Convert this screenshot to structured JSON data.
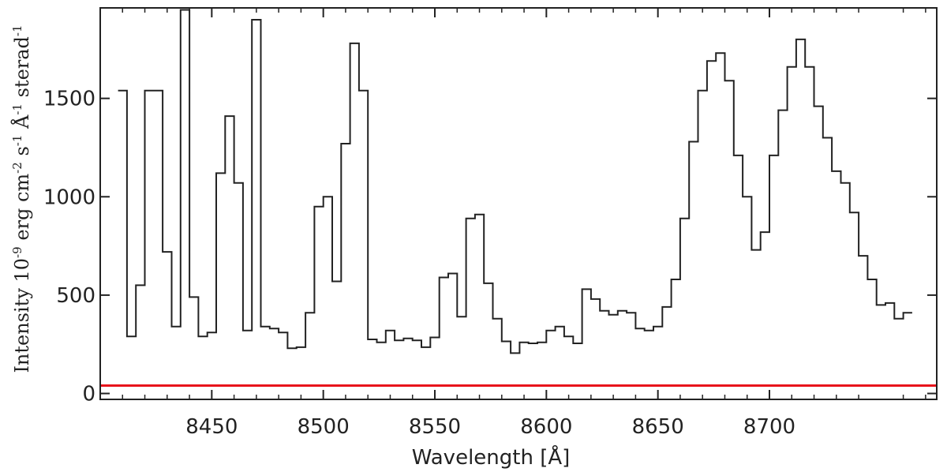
{
  "chart_data": {
    "type": "line",
    "style": "step",
    "xlabel": "Wavelength [Å]",
    "ylabel": {
      "parts": [
        {
          "t": "Intensity 10",
          "sup": false
        },
        {
          "t": "-9",
          "sup": true
        },
        {
          "t": " erg cm",
          "sup": false
        },
        {
          "t": "-2",
          "sup": true
        },
        {
          "t": " s",
          "sup": false
        },
        {
          "t": "-1",
          "sup": true
        },
        {
          "t": " Å",
          "sup": false
        },
        {
          "t": "-1",
          "sup": true
        },
        {
          "t": "  sterad",
          "sup": false
        },
        {
          "t": "-1",
          "sup": true
        }
      ]
    },
    "xlim": [
      8400,
      8775
    ],
    "ylim": [
      -30,
      1960
    ],
    "xticks": [
      {
        "value": 8450,
        "label": "8450"
      },
      {
        "value": 8500,
        "label": "8500"
      },
      {
        "value": 8550,
        "label": "8550"
      },
      {
        "value": 8600,
        "label": "8600"
      },
      {
        "value": 8650,
        "label": "8650"
      },
      {
        "value": 8700,
        "label": "8700"
      }
    ],
    "yticks": [
      {
        "value": 0,
        "label": "0"
      },
      {
        "value": 500,
        "label": "500"
      },
      {
        "value": 1000,
        "label": "1000"
      },
      {
        "value": 1500,
        "label": "1500"
      }
    ],
    "grid": false,
    "line_color": "#222222",
    "reference_line": {
      "y": 40,
      "color": "#e8141b"
    },
    "series": [
      {
        "x": [
          8410,
          8414,
          8418,
          8422,
          8426,
          8430,
          8434,
          8438,
          8442,
          8446,
          8450,
          8454,
          8458,
          8462,
          8466,
          8470,
          8474,
          8478,
          8482,
          8486,
          8490,
          8494,
          8498,
          8502,
          8506,
          8510,
          8514,
          8518,
          8522,
          8526,
          8530,
          8534,
          8538,
          8542,
          8546,
          8550,
          8554,
          8558,
          8562,
          8566,
          8570,
          8574,
          8578,
          8582,
          8586,
          8590,
          8594,
          8598,
          8602,
          8606,
          8610,
          8614,
          8618,
          8622,
          8626,
          8630,
          8634,
          8638,
          8642,
          8646,
          8650,
          8654,
          8658,
          8662,
          8666,
          8670,
          8674,
          8678,
          8682,
          8686,
          8690,
          8694,
          8698,
          8702,
          8706,
          8710,
          8714,
          8718,
          8722,
          8726,
          8730,
          8734,
          8738,
          8742,
          8746,
          8750,
          8754,
          8758,
          8762
        ],
        "y": [
          1540,
          290,
          550,
          1540,
          1540,
          720,
          340,
          1950,
          490,
          290,
          310,
          1120,
          1410,
          1070,
          320,
          1900,
          340,
          330,
          310,
          230,
          235,
          410,
          950,
          1000,
          570,
          1270,
          1780,
          1540,
          275,
          260,
          320,
          270,
          280,
          270,
          235,
          285,
          590,
          610,
          390,
          890,
          910,
          560,
          380,
          265,
          205,
          260,
          255,
          260,
          320,
          340,
          290,
          255,
          530,
          480,
          420,
          400,
          420,
          410,
          330,
          320,
          340,
          440,
          580,
          890,
          1280,
          1540,
          1690,
          1730,
          1590,
          1210,
          1000,
          730,
          820,
          1210,
          1440,
          1660,
          1800,
          1660,
          1460,
          1300,
          1130,
          1070,
          920,
          700,
          580,
          450,
          460,
          380,
          410
        ]
      }
    ]
  }
}
